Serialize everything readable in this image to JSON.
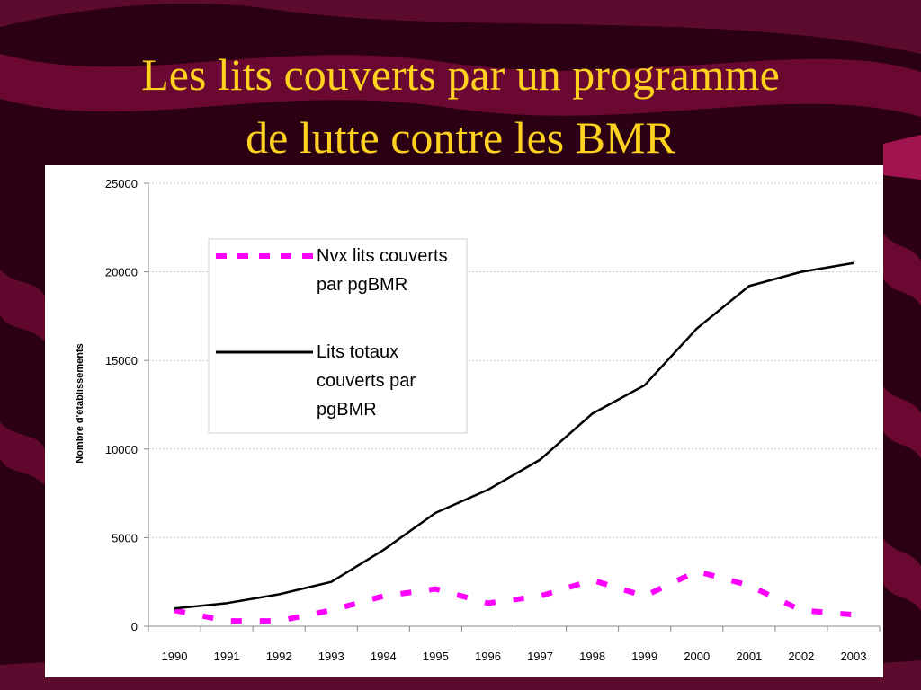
{
  "slide": {
    "title_line1": "Les lits couverts par un programme",
    "title_line2": "de lutte contre les BMR",
    "colors": {
      "background": "#2a0012",
      "title": "#ffd21f",
      "accent_band": "#7a0a3a"
    }
  },
  "chart_data": {
    "type": "line",
    "title": "",
    "xlabel": "",
    "ylabel": "Nombre d'établissements",
    "x": [
      "1990",
      "1991",
      "1992",
      "1993",
      "1994",
      "1995",
      "1996",
      "1997",
      "1998",
      "1999",
      "2000",
      "2001",
      "2002",
      "2003"
    ],
    "ylim": [
      0,
      25000
    ],
    "yticks": [
      0,
      5000,
      10000,
      15000,
      20000,
      25000
    ],
    "grid": true,
    "legend_position": "upper-left",
    "series": [
      {
        "name": "Nvx lits couverts par pgBMR",
        "legend_line1": "Nvx lits couverts",
        "legend_line2": "par pgBMR",
        "color": "#ff00ff",
        "style": "dashed",
        "values": [
          900,
          300,
          300,
          900,
          1700,
          2100,
          1300,
          1700,
          2600,
          1700,
          3100,
          2300,
          900,
          650
        ]
      },
      {
        "name": "Lits totaux couverts par pgBMR",
        "legend_line1": "Lits totaux",
        "legend_line2": "couverts par",
        "legend_line3": "pgBMR",
        "color": "#000000",
        "style": "solid",
        "values": [
          1000,
          1300,
          1800,
          2500,
          4300,
          6400,
          7700,
          9400,
          12000,
          13600,
          16800,
          19200,
          20000,
          20500
        ]
      }
    ]
  }
}
